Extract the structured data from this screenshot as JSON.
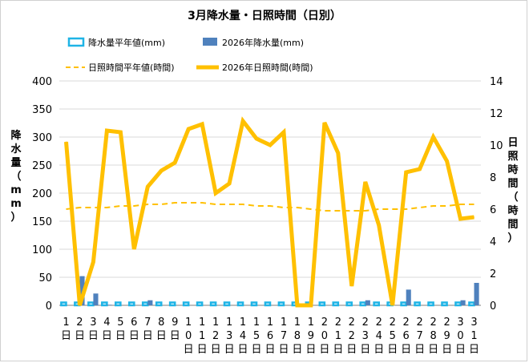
{
  "chart_data": {
    "type": "bar+line",
    "title": "3月降水量・日照時間（日別）",
    "categories": [
      "1日",
      "2日",
      "3日",
      "4日",
      "5日",
      "6日",
      "7日",
      "8日",
      "9日",
      "10日",
      "11日",
      "12日",
      "13日",
      "14日",
      "15日",
      "16日",
      "17日",
      "18日",
      "19日",
      "20日",
      "21日",
      "22日",
      "23日",
      "24日",
      "25日",
      "26日",
      "27日",
      "28日",
      "29日",
      "30日",
      "31日"
    ],
    "y_left": {
      "label": "降水量（mm）",
      "min": 0,
      "max": 400,
      "ticks": [
        0,
        50,
        100,
        150,
        200,
        250,
        300,
        350,
        400
      ]
    },
    "y_right": {
      "label": "日照時間（時間）",
      "min": 0,
      "max": 14,
      "ticks": [
        0,
        2,
        4,
        6,
        8,
        10,
        12,
        14
      ]
    },
    "legend": {
      "placement": "top"
    },
    "series": [
      {
        "name": "降水量平年値(mm)",
        "axis": "left",
        "kind": "bar-outline",
        "color": "#1fb4e6",
        "values": [
          5,
          5,
          5,
          5,
          5,
          5,
          5,
          5,
          5,
          5,
          5,
          5,
          5,
          5,
          5,
          5,
          5,
          5,
          5,
          5,
          5,
          5,
          5,
          5,
          5,
          5,
          5,
          5,
          5,
          5,
          5
        ]
      },
      {
        "name": "2026年降水量(mm)",
        "axis": "left",
        "kind": "bar",
        "color": "#4f81bd",
        "values": [
          0,
          52,
          21,
          1,
          0,
          0,
          9,
          0,
          0,
          0,
          0,
          0,
          0,
          0,
          0,
          0,
          0,
          0,
          0,
          0,
          0,
          0,
          9,
          0,
          0,
          28,
          0,
          0,
          0,
          9,
          40
        ]
      },
      {
        "name": "日照時間平年値(時間)",
        "axis": "right",
        "kind": "line-dashed",
        "color": "#ffc000",
        "values": [
          6.0,
          6.1,
          6.1,
          6.1,
          6.2,
          6.2,
          6.3,
          6.3,
          6.4,
          6.4,
          6.4,
          6.3,
          6.3,
          6.3,
          6.2,
          6.2,
          6.1,
          6.1,
          6.0,
          5.9,
          5.9,
          5.9,
          5.9,
          6.0,
          6.0,
          6.0,
          6.1,
          6.2,
          6.2,
          6.3,
          6.3
        ]
      },
      {
        "name": "2026年日照時間(時間)",
        "axis": "right",
        "kind": "line",
        "color": "#ffc000",
        "values": [
          10.2,
          0.0,
          2.7,
          10.9,
          10.8,
          3.5,
          7.4,
          8.4,
          8.9,
          11.0,
          11.3,
          7.0,
          7.6,
          11.5,
          10.4,
          10.0,
          10.8,
          0.0,
          0.0,
          11.4,
          9.5,
          1.2,
          7.7,
          5.0,
          0.0,
          8.3,
          8.5,
          10.5,
          9.0,
          5.4,
          5.5
        ]
      }
    ]
  }
}
